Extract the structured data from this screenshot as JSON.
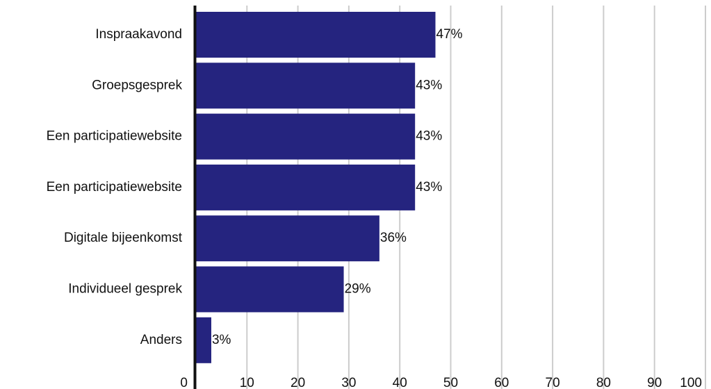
{
  "chart_data": {
    "type": "bar",
    "orientation": "horizontal",
    "categories": [
      "Inspraakavond",
      "Groepsgesprek",
      "Een participatiewebsite",
      "Een participatiewebsite",
      "Digitale bijeenkomst",
      "Individueel gesprek",
      "Anders"
    ],
    "values": [
      47,
      43,
      43,
      43,
      36,
      29,
      3
    ],
    "value_labels": [
      "47%",
      "43%",
      "43%",
      "43%",
      "36%",
      "29%",
      "3%"
    ],
    "x_ticks": [
      "0",
      "10",
      "20",
      "30",
      "40",
      "50",
      "60",
      "70",
      "80",
      "90",
      "100"
    ],
    "xlim": [
      0,
      100
    ],
    "grid": "vertical",
    "bar_color": "#25247f",
    "grid_color": "#cccccc",
    "axis_color": "#111111"
  }
}
